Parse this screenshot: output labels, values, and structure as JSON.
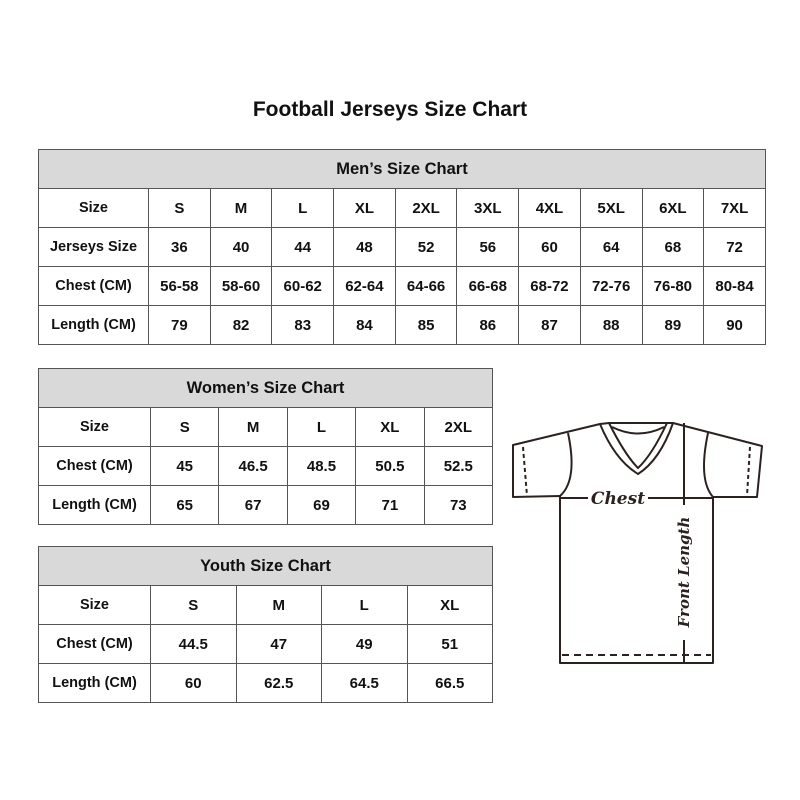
{
  "title": "Football Jerseys Size Chart",
  "tables": {
    "men": {
      "heading": "Men’s Size Chart",
      "rows": [
        [
          "Size",
          "S",
          "M",
          "L",
          "XL",
          "2XL",
          "3XL",
          "4XL",
          "5XL",
          "6XL",
          "7XL"
        ],
        [
          "Jerseys Size",
          "36",
          "40",
          "44",
          "48",
          "52",
          "56",
          "60",
          "64",
          "68",
          "72"
        ],
        [
          "Chest (CM)",
          "56-58",
          "58-60",
          "60-62",
          "62-64",
          "64-66",
          "66-68",
          "68-72",
          "72-76",
          "76-80",
          "80-84"
        ],
        [
          "Length (CM)",
          "79",
          "82",
          "83",
          "84",
          "85",
          "86",
          "87",
          "88",
          "89",
          "90"
        ]
      ]
    },
    "women": {
      "heading": "Women’s Size Chart",
      "rows": [
        [
          "Size",
          "S",
          "M",
          "L",
          "XL",
          "2XL"
        ],
        [
          "Chest (CM)",
          "45",
          "46.5",
          "48.5",
          "50.5",
          "52.5"
        ],
        [
          "Length (CM)",
          "65",
          "67",
          "69",
          "71",
          "73"
        ]
      ]
    },
    "youth": {
      "heading": "Youth Size Chart",
      "rows": [
        [
          "Size",
          "S",
          "M",
          "L",
          "XL"
        ],
        [
          "Chest (CM)",
          "44.5",
          "47",
          "49",
          "51"
        ],
        [
          "Length (CM)",
          "60",
          "62.5",
          "64.5",
          "66.5"
        ]
      ]
    }
  },
  "diagram": {
    "chest_label": "Chest",
    "length_label": "Front Length",
    "line_color": "#2b2220"
  }
}
